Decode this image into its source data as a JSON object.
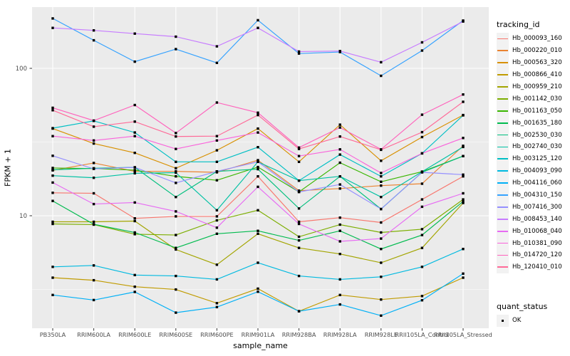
{
  "chart_data": {
    "type": "line",
    "title": "",
    "xlabel": "sample_name",
    "ylabel": "FPKM + 1",
    "y_scale": "log10",
    "y_major_ticks": [
      100,
      10
    ],
    "y_tick_labels": [
      "100",
      "10"
    ],
    "y_minor_ticks": [
      31.623,
      3.1623
    ],
    "ylim": [
      1.72,
      260
    ],
    "grid": "on",
    "legend_position": "right",
    "panel": {
      "bg": "#EBEBEB",
      "grid_color": "#FFFFFF",
      "tick_color": "#333333",
      "axis_text_color": "#4D4D4D"
    },
    "point_marker": {
      "shape": "square",
      "color": "#000000",
      "size": 3.4
    },
    "categories": [
      "PB350LA",
      "RRIM600LA",
      "RRIM600LE",
      "RRIM600SE",
      "RRIM600PE",
      "RRIM901LA",
      "RRIM928BA",
      "RRIM928LA",
      "RRIM928LE",
      "RRII105LA_Control",
      "RRII105LA_Stressed"
    ],
    "series": [
      {
        "name": "Hb_000093_160",
        "color": "#F8766D",
        "values": [
          14.3,
          14.2,
          9.6,
          9.9,
          9.9,
          18.5,
          9.1,
          9.7,
          9.0,
          12.9,
          18.5
        ]
      },
      {
        "name": "Hb_000220_010",
        "color": "#EA8331",
        "values": [
          20.3,
          22.8,
          20.0,
          20.0,
          19.7,
          23.8,
          14.8,
          15.3,
          16.0,
          16.5,
          29.8
        ]
      },
      {
        "name": "Hb_000563_320",
        "color": "#D89000",
        "values": [
          39.0,
          30.9,
          26.7,
          21.0,
          27.8,
          39.0,
          23.2,
          41.5,
          23.6,
          34.2,
          48.2
        ]
      },
      {
        "name": "Hb_000866_410",
        "color": "#C09B00",
        "values": [
          3.8,
          3.65,
          3.3,
          3.16,
          2.55,
          3.2,
          2.25,
          2.9,
          2.7,
          2.85,
          3.8
        ]
      },
      {
        "name": "Hb_000959_210",
        "color": "#A3A500",
        "values": [
          9.1,
          9.1,
          9.2,
          5.9,
          4.65,
          7.55,
          6.05,
          5.5,
          4.8,
          6.05,
          12.2
        ]
      },
      {
        "name": "Hb_001142_030",
        "color": "#7CAE00",
        "values": [
          8.8,
          8.7,
          7.5,
          7.4,
          9.3,
          10.9,
          7.2,
          8.7,
          7.7,
          8.1,
          12.9
        ]
      },
      {
        "name": "Hb_001163_050",
        "color": "#39B600",
        "values": [
          21.1,
          20.9,
          20.4,
          18.5,
          17.4,
          21.4,
          14.5,
          22.9,
          17.0,
          19.9,
          25.4
        ]
      },
      {
        "name": "Hb_001635_180",
        "color": "#00BB4E",
        "values": [
          12.6,
          8.75,
          7.7,
          6.05,
          7.55,
          7.9,
          6.8,
          7.9,
          5.95,
          7.4,
          12.5
        ]
      },
      {
        "name": "Hb_002530_030",
        "color": "#00BF7D",
        "values": [
          20.5,
          21.0,
          21.3,
          13.4,
          20.0,
          20.7,
          11.2,
          18.5,
          11.1,
          19.7,
          25.4
        ]
      },
      {
        "name": "Hb_002740_030",
        "color": "#00C1A3",
        "values": [
          18.7,
          18.1,
          19.4,
          19.6,
          10.9,
          23.2,
          17.3,
          18.5,
          13.4,
          19.9,
          29.3
        ]
      },
      {
        "name": "Hb_003125_120",
        "color": "#00BFC4",
        "values": [
          39.3,
          44.0,
          36.7,
          23.2,
          23.2,
          29.2,
          17.3,
          26.0,
          18.5,
          26.5,
          48.0
        ]
      },
      {
        "name": "Hb_004093_090",
        "color": "#00BAE0",
        "values": [
          4.5,
          4.6,
          3.96,
          3.9,
          3.7,
          4.8,
          3.9,
          3.7,
          3.85,
          4.5,
          5.95
        ]
      },
      {
        "name": "Hb_004116_060",
        "color": "#00B0F6",
        "values": [
          2.9,
          2.68,
          3.04,
          2.2,
          2.4,
          3.05,
          2.25,
          2.5,
          2.1,
          2.67,
          4.05
        ]
      },
      {
        "name": "Hb_004310_150",
        "color": "#35A2FF",
        "values": [
          218,
          155,
          111,
          135,
          109,
          212,
          126,
          129,
          89,
          132,
          211
        ]
      },
      {
        "name": "Hb_007416_300",
        "color": "#9590FF",
        "values": [
          25.5,
          20.8,
          21.3,
          16.7,
          20.0,
          23.2,
          14.5,
          16.3,
          11.1,
          19.7,
          19.0
        ]
      },
      {
        "name": "Hb_008453_140",
        "color": "#C77CFF",
        "values": [
          188,
          181,
          172,
          164,
          141,
          188,
          130,
          131,
          110,
          150,
          208
        ]
      },
      {
        "name": "Hb_010068_040",
        "color": "#E76BF3",
        "values": [
          16.8,
          12.0,
          12.3,
          10.7,
          8.3,
          15.7,
          8.8,
          6.7,
          7.0,
          11.5,
          14.2
        ]
      },
      {
        "name": "Hb_010381_090",
        "color": "#FA62DB",
        "values": [
          34.7,
          32.4,
          34.7,
          28.4,
          32.4,
          36.7,
          25.4,
          28.2,
          19.5,
          26.5,
          33.7
        ]
      },
      {
        "name": "Hb_014720_120",
        "color": "#FF62BC",
        "values": [
          54.0,
          44.2,
          56.4,
          36.4,
          58.6,
          50.0,
          29.0,
          39.7,
          28.2,
          48.5,
          66.5
        ]
      },
      {
        "name": "Hb_120410_010",
        "color": "#FF6A98",
        "values": [
          52.0,
          40.2,
          43.5,
          34.5,
          34.7,
          48.2,
          28.4,
          34.5,
          28.0,
          36.9,
          59.3
        ]
      }
    ],
    "legend": {
      "tracking_title": "tracking_id",
      "quant_title": "quant_status",
      "quant_items": [
        {
          "label": "OK"
        }
      ]
    }
  }
}
